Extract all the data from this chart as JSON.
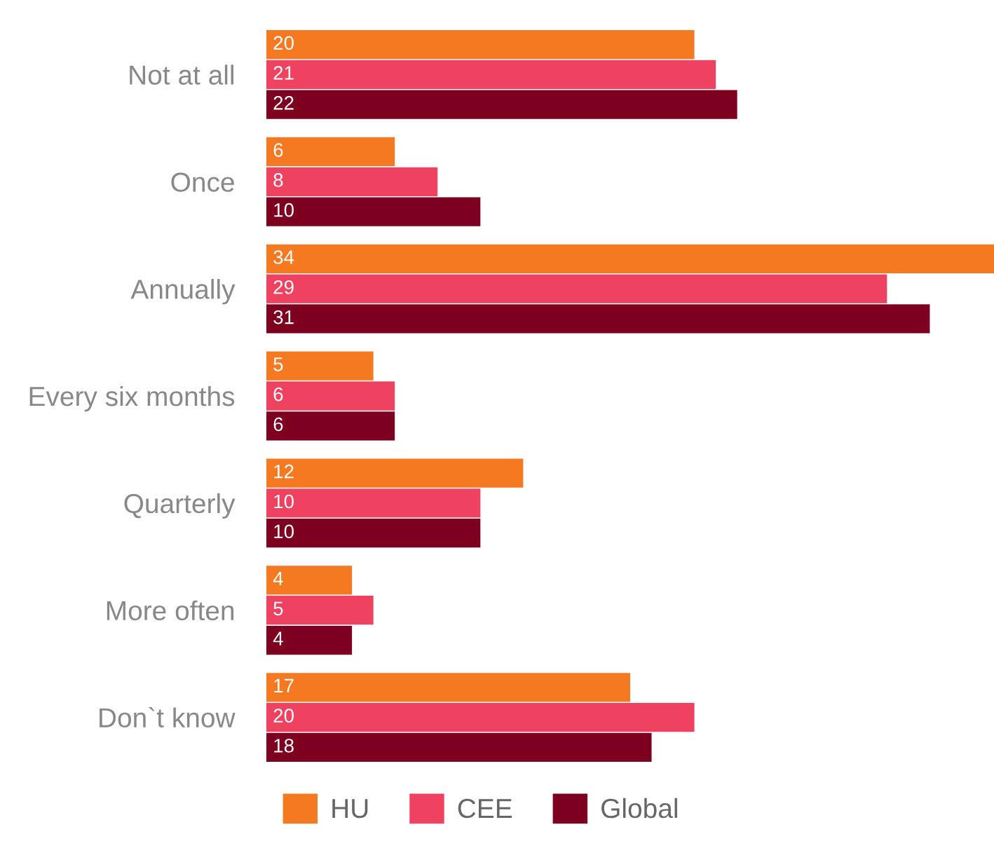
{
  "chart_data": {
    "type": "bar",
    "orientation": "horizontal",
    "data_labels": true,
    "legend": "bottom",
    "grid": false,
    "categories": [
      "Not at all",
      "Once",
      "Annually",
      "Every six months",
      "Quarterly",
      "More often",
      "Don`t know"
    ],
    "series": [
      {
        "name": "HU",
        "color": "#f47920",
        "values": [
          20,
          6,
          34,
          5,
          12,
          4,
          17
        ]
      },
      {
        "name": "CEE",
        "color": "#ef4160",
        "values": [
          21,
          8,
          29,
          6,
          10,
          5,
          20
        ]
      },
      {
        "name": "Global",
        "color": "#7d0021",
        "values": [
          22,
          10,
          31,
          6,
          10,
          4,
          18
        ]
      }
    ]
  }
}
